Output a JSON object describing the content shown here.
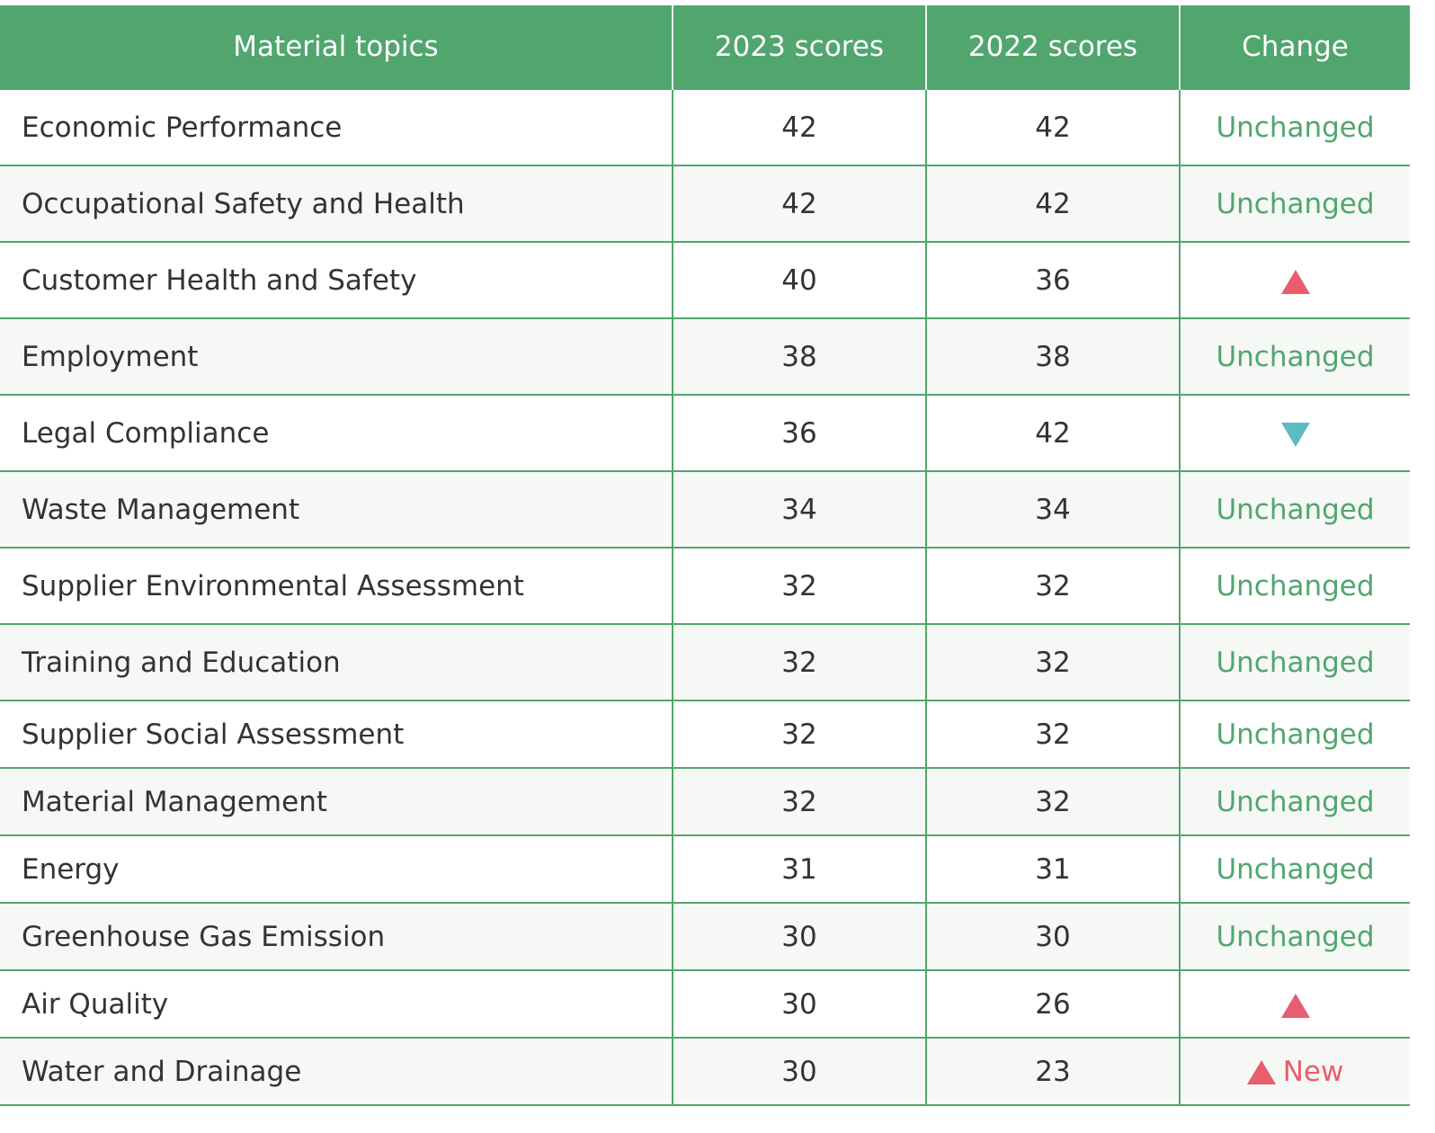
{
  "colors": {
    "header_bg": "#51a66e",
    "grid_line": "#51a66e",
    "unchanged_text": "#51a66e",
    "up_arrow": "#e85d6f",
    "down_arrow": "#5bbdc3",
    "alt_row_bg": "#f6f8f5"
  },
  "table": {
    "headers": [
      "Material topics",
      "2023 scores",
      "2022 scores",
      "Change"
    ],
    "rows": [
      {
        "topic": "Economic Performance",
        "score_2023": "42",
        "score_2022": "42",
        "change": "Unchanged",
        "change_type": "unchanged"
      },
      {
        "topic": "Occupational Safety and Health",
        "score_2023": "42",
        "score_2022": "42",
        "change": "Unchanged",
        "change_type": "unchanged"
      },
      {
        "topic": "Customer Health and Safety",
        "score_2023": "40",
        "score_2022": "36",
        "change": "",
        "change_type": "up",
        "icon": "up-triangle-icon"
      },
      {
        "topic": "Employment",
        "score_2023": "38",
        "score_2022": "38",
        "change": "Unchanged",
        "change_type": "unchanged"
      },
      {
        "topic": "Legal Compliance",
        "score_2023": "36",
        "score_2022": "42",
        "change": "",
        "change_type": "down",
        "icon": "down-triangle-icon"
      },
      {
        "topic": "Waste Management",
        "score_2023": "34",
        "score_2022": "34",
        "change": "Unchanged",
        "change_type": "unchanged"
      },
      {
        "topic": "Supplier Environmental Assessment",
        "score_2023": "32",
        "score_2022": "32",
        "change": "Unchanged",
        "change_type": "unchanged"
      },
      {
        "topic": "Training and Education",
        "score_2023": "32",
        "score_2022": "32",
        "change": "Unchanged",
        "change_type": "unchanged"
      },
      {
        "topic": "Supplier Social Assessment",
        "score_2023": "32",
        "score_2022": "32",
        "change": "Unchanged",
        "change_type": "unchanged"
      },
      {
        "topic": "Material Management",
        "score_2023": "32",
        "score_2022": "32",
        "change": "Unchanged",
        "change_type": "unchanged"
      },
      {
        "topic": "Energy",
        "score_2023": "31",
        "score_2022": "31",
        "change": "Unchanged",
        "change_type": "unchanged"
      },
      {
        "topic": "Greenhouse Gas Emission",
        "score_2023": "30",
        "score_2022": "30",
        "change": "Unchanged",
        "change_type": "unchanged"
      },
      {
        "topic": "Air Quality",
        "score_2023": "30",
        "score_2022": "26",
        "change": "",
        "change_type": "up",
        "icon": "up-triangle-icon"
      },
      {
        "topic": "Water and Drainage",
        "score_2023": "30",
        "score_2022": "23",
        "change": "New",
        "change_type": "up-new",
        "icon": "up-triangle-icon"
      }
    ]
  }
}
